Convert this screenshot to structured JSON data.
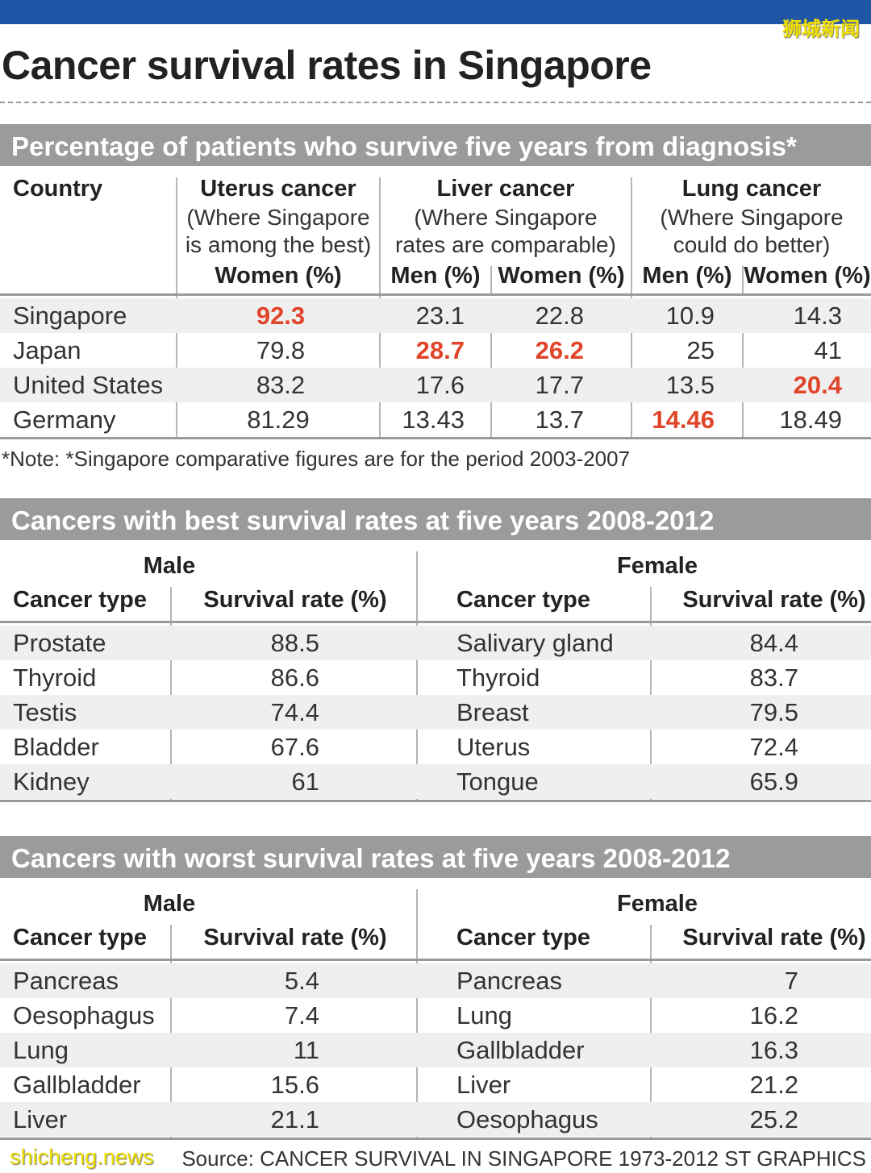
{
  "watermark_top": "狮城新闻",
  "title": "Cancer survival rates in Singapore",
  "section1": {
    "heading": "Percentage of patients who survive five years from diagnosis*",
    "country_header": "Country",
    "uterus": {
      "title": "Uterus cancer",
      "sub1": "(Where Singapore",
      "sub2": "is among the best)",
      "col": "Women (%)"
    },
    "liver": {
      "title": "Liver cancer",
      "sub1": "(Where Singapore",
      "sub2": "rates are comparable)",
      "col_men": "Men (%)",
      "col_women": "Women (%)"
    },
    "lung": {
      "title": "Lung cancer",
      "sub1": "(Where Singapore",
      "sub2": "could do better)",
      "col_men": "Men (%)",
      "col_women": "Women (%)"
    },
    "rows": [
      {
        "country": "Singapore",
        "uterus_w": "92.3",
        "liver_m": "23.1",
        "liver_w": "22.8",
        "lung_m": "10.9",
        "lung_w": "14.3"
      },
      {
        "country": "Japan",
        "uterus_w": "79.8",
        "liver_m": "28.7",
        "liver_w": "26.2",
        "lung_m": "25",
        "lung_w": "41"
      },
      {
        "country": "United States",
        "uterus_w": "83.2",
        "liver_m": "17.6",
        "liver_w": "17.7",
        "lung_m": "13.5",
        "lung_w": "20.4"
      },
      {
        "country": "Germany",
        "uterus_w": "81.29",
        "liver_m": "13.43",
        "liver_w": "13.7",
        "lung_m": "14.46",
        "lung_w": "18.49"
      }
    ],
    "highlight_color": "#e0452a",
    "note": "*Note: *Singapore comparative figures are for the period 2003-2007"
  },
  "section2": {
    "heading": "Cancers with best survival rates at five years 2008-2012",
    "male": "Male",
    "female": "Female",
    "col_type": "Cancer type",
    "col_rate": "Survival rate (%)",
    "rows": [
      {
        "m_type": "Prostate",
        "m_rate": "88.5",
        "f_type": "Salivary gland",
        "f_rate": "84.4"
      },
      {
        "m_type": "Thyroid",
        "m_rate": "86.6",
        "f_type": "Thyroid",
        "f_rate": "83.7"
      },
      {
        "m_type": "Testis",
        "m_rate": "74.4",
        "f_type": "Breast",
        "f_rate": "79.5"
      },
      {
        "m_type": "Bladder",
        "m_rate": "67.6",
        "f_type": "Uterus",
        "f_rate": "72.4"
      },
      {
        "m_type": "Kidney",
        "m_rate": "61",
        "f_type": "Tongue",
        "f_rate": "65.9"
      }
    ]
  },
  "section3": {
    "heading": "Cancers with worst survival rates at five years 2008-2012",
    "male": "Male",
    "female": "Female",
    "col_type": "Cancer type",
    "col_rate": "Survival rate (%)",
    "rows": [
      {
        "m_type": "Pancreas",
        "m_rate": "5.4",
        "f_type": "Pancreas",
        "f_rate": "7"
      },
      {
        "m_type": "Oesophagus",
        "m_rate": "7.4",
        "f_type": "Lung",
        "f_rate": "16.2"
      },
      {
        "m_type": "Lung",
        "m_rate": "11",
        "f_type": "Gallbladder",
        "f_rate": "16.3"
      },
      {
        "m_type": "Gallbladder",
        "m_rate": "15.6",
        "f_type": "Liver",
        "f_rate": "21.2"
      },
      {
        "m_type": "Liver",
        "m_rate": "21.1",
        "f_type": "Oesophagus",
        "f_rate": "25.2"
      }
    ]
  },
  "source": "Source: CANCER SURVIVAL IN SINGAPORE 1973-2012   ST GRAPHICS",
  "watermark_bottom": "shicheng.news"
}
